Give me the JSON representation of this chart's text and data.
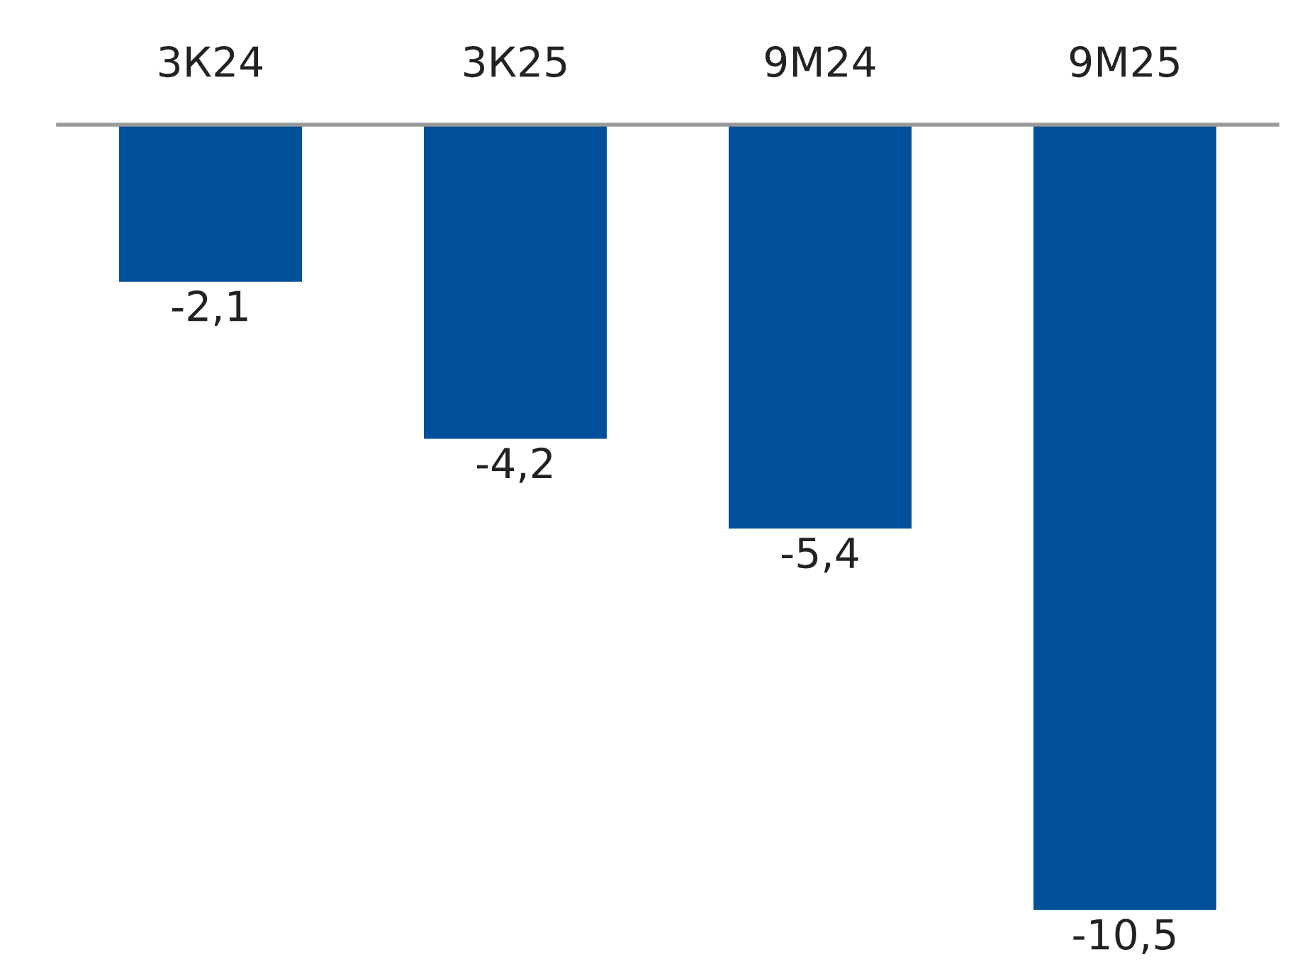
{
  "chart_data": {
    "type": "bar",
    "categories": [
      "3К24",
      "3К25",
      "9М24",
      "9М25"
    ],
    "values": [
      -2.1,
      -4.2,
      -5.4,
      -10.5
    ],
    "value_labels": [
      "-2,1",
      "-4,2",
      "-5,4",
      "-10,5"
    ],
    "color": "#00509a",
    "grid": false,
    "legend": false
  }
}
